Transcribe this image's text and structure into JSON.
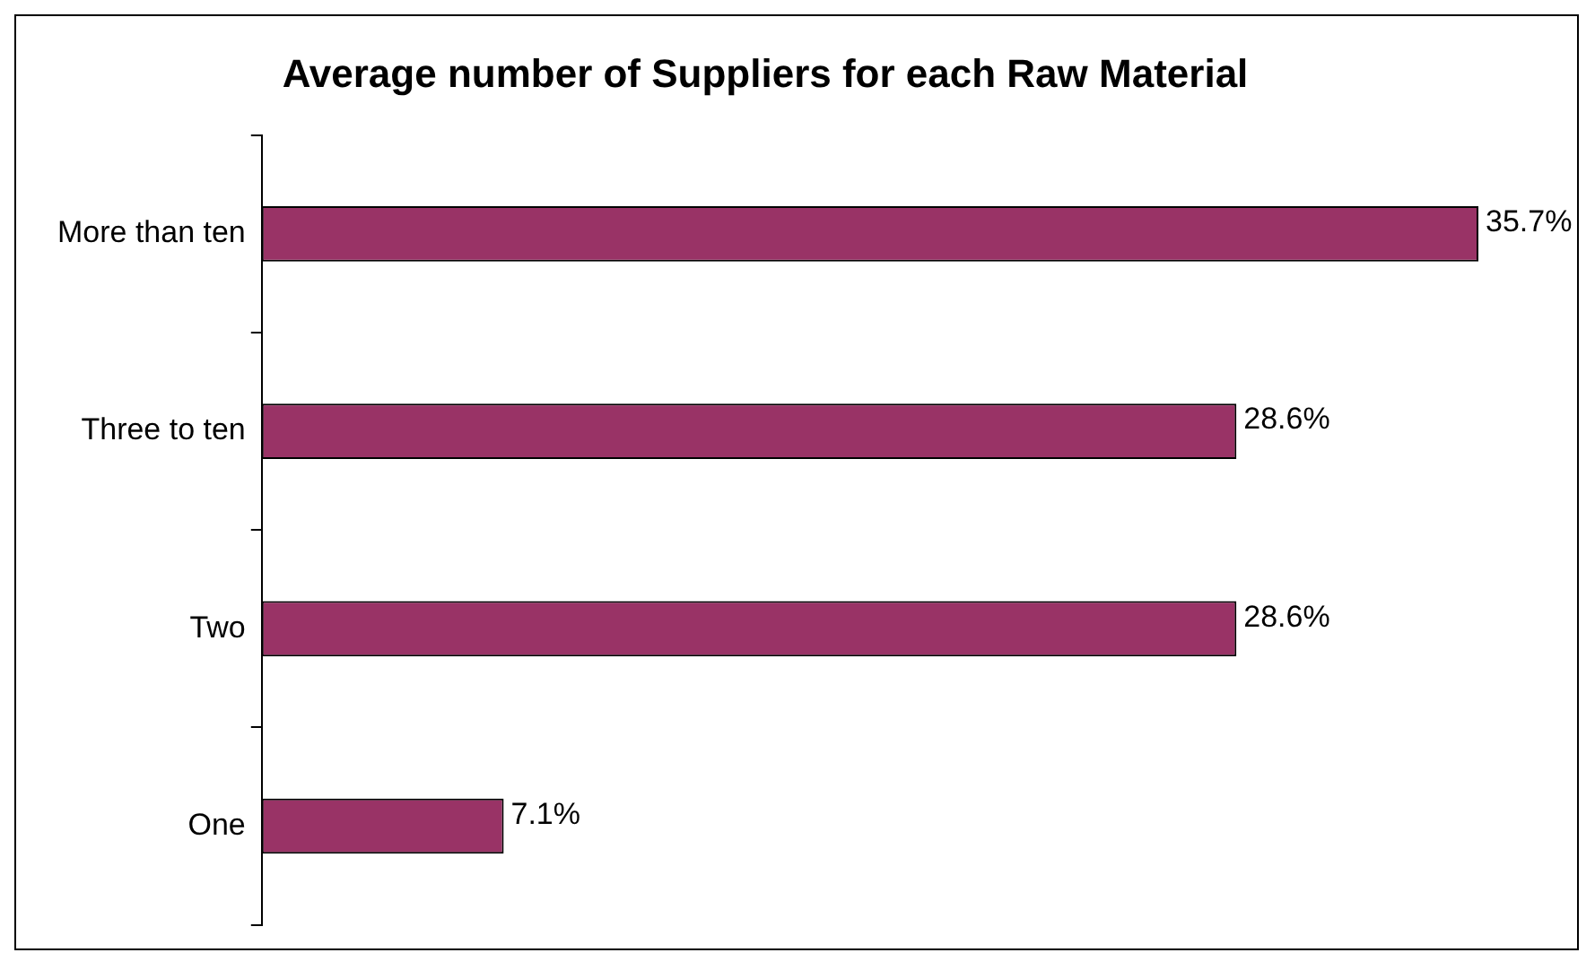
{
  "chart_data": {
    "type": "bar",
    "title": "Average number of Suppliers for each Raw Material",
    "orientation": "horizontal",
    "categories": [
      "More than ten",
      "Three to ten",
      "Two",
      "One"
    ],
    "values": [
      35.7,
      28.6,
      28.6,
      7.1
    ],
    "color": "#993366",
    "value_labels": [
      "35.7%",
      "28.6%",
      "28.6%",
      "7.1%"
    ]
  }
}
